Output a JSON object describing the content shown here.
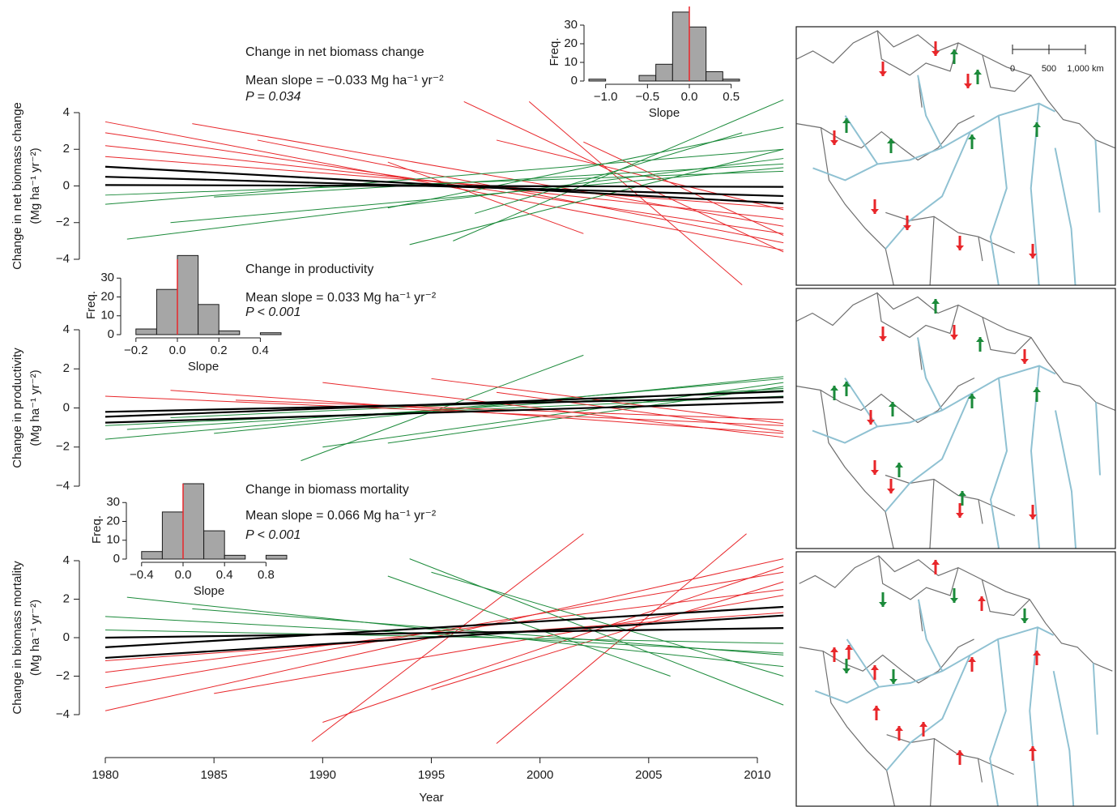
{
  "chart_data": [
    {
      "type": "line",
      "title": "Change in net biomass change",
      "annotation": "Mean slope = −0.033 Mg ha⁻¹ yr⁻²",
      "p_text": "P = 0.034",
      "ylabel": [
        "Change in net biomass change",
        "(Mg ha⁻¹ yr⁻²)"
      ],
      "xlim": [
        1980,
        2010
      ],
      "ylim": [
        -4,
        4
      ],
      "yticks": [
        {
          "value": -4,
          "label": "−4"
        },
        {
          "value": -2,
          "label": "−2"
        },
        0,
        2,
        4
      ],
      "series": [
        {
          "color": "#e8262a",
          "x": [
            1980,
            2011.2
          ],
          "values": [
            3.5,
            -3.5
          ]
        },
        {
          "color": "#e8262a",
          "x": [
            1980,
            2011.2
          ],
          "values": [
            2.9,
            -2.6
          ]
        },
        {
          "color": "#e8262a",
          "x": [
            1980,
            2011.2
          ],
          "values": [
            2.2,
            -1.8
          ]
        },
        {
          "color": "#e8262a",
          "x": [
            1980,
            2011.2
          ],
          "values": [
            1.6,
            -1.2
          ]
        },
        {
          "color": "#e8262a",
          "x": [
            1984,
            2011.2
          ],
          "values": [
            3.4,
            -2.2
          ]
        },
        {
          "color": "#e8262a",
          "x": [
            1987,
            2011.2
          ],
          "values": [
            2.5,
            -3.1
          ]
        },
        {
          "color": "#e8262a",
          "x": [
            1996.5,
            2011.2
          ],
          "values": [
            4.6,
            -3.6
          ]
        },
        {
          "color": "#e8262a",
          "x": [
            1999.5,
            2009.3
          ],
          "values": [
            4.6,
            -5.4
          ]
        },
        {
          "color": "#e8262a",
          "x": [
            1993,
            2002
          ],
          "values": [
            1.3,
            -2.6
          ]
        },
        {
          "color": "#e8262a",
          "x": [
            1998,
            2011.2
          ],
          "values": [
            2.5,
            -1.3
          ]
        },
        {
          "color": "#e8262a",
          "x": [
            2002,
            2011.2
          ],
          "values": [
            2.4,
            -2.7
          ]
        },
        {
          "color": "#1b8a3a",
          "x": [
            1981,
            2011.2
          ],
          "values": [
            -2.9,
            1.5
          ]
        },
        {
          "color": "#1b8a3a",
          "x": [
            1980,
            2011.2
          ],
          "values": [
            -1.0,
            2.0
          ]
        },
        {
          "color": "#1b8a3a",
          "x": [
            1980,
            2011.2
          ],
          "values": [
            -0.5,
            0.8
          ]
        },
        {
          "color": "#1b8a3a",
          "x": [
            1983,
            2011.2
          ],
          "values": [
            -2.0,
            1.0
          ]
        },
        {
          "color": "#1b8a3a",
          "x": [
            1996,
            2011.2
          ],
          "values": [
            -3.0,
            4.7
          ]
        },
        {
          "color": "#1b8a3a",
          "x": [
            1993,
            2011.2
          ],
          "values": [
            -1.2,
            3.2
          ]
        },
        {
          "color": "#1b8a3a",
          "x": [
            1985,
            2011.2
          ],
          "values": [
            -0.6,
            1.2
          ]
        },
        {
          "color": "#1b8a3a",
          "x": [
            1997,
            2009.3
          ],
          "values": [
            -1.5,
            2.9
          ]
        },
        {
          "color": "#1b8a3a",
          "x": [
            1994,
            2011.2
          ],
          "values": [
            -3.2,
            2.0
          ]
        },
        {
          "color": "#000000",
          "x": [
            1980,
            2011.2
          ],
          "values": [
            1.05,
            -0.95
          ]
        },
        {
          "color": "#000000",
          "x": [
            1980,
            2011.2
          ],
          "values": [
            0.5,
            -0.55
          ]
        },
        {
          "color": "#000000",
          "x": [
            1980,
            2011.2
          ],
          "values": [
            0.05,
            -0.05
          ]
        }
      ]
    },
    {
      "type": "histogram",
      "xlabel": "Slope",
      "ylabel": "Freq.",
      "color": "#a6a6a6",
      "ref_line": 0,
      "ref_color": "#e8262a",
      "bins": [
        -1.2,
        -1.0,
        -0.8,
        -0.6,
        -0.4,
        -0.2,
        0.0,
        0.2,
        0.4,
        0.6
      ],
      "counts": [
        1,
        0,
        0,
        3,
        9,
        37,
        29,
        5,
        1
      ],
      "xlim": [
        -1.2,
        0.6
      ],
      "ylim": [
        0,
        40
      ],
      "xticks": [
        {
          "value": -1.0,
          "label": "−1.0"
        },
        {
          "value": -0.5,
          "label": "−0.5"
        },
        {
          "value": 0,
          "label": "0.0"
        },
        0.5
      ],
      "yticks": [
        0,
        10,
        20,
        30
      ]
    },
    {
      "type": "line",
      "title": "Change in productivity",
      "annotation": "Mean slope = 0.033 Mg ha⁻¹ yr⁻²",
      "p_text": "P < 0.001",
      "ylabel": [
        "Change in productivity",
        "(Mg ha⁻¹ yr⁻²)"
      ],
      "xlim": [
        1980,
        2010
      ],
      "ylim": [
        -4,
        4
      ],
      "yticks": [
        {
          "value": -4,
          "label": "−4"
        },
        {
          "value": -2,
          "label": "−2"
        },
        0,
        2,
        4
      ],
      "series": [
        {
          "color": "#1b8a3a",
          "x": [
            1980,
            2011.2
          ],
          "values": [
            -1.6,
            1.5
          ]
        },
        {
          "color": "#1b8a3a",
          "x": [
            1981,
            2011.2
          ],
          "values": [
            -1.1,
            1.0
          ]
        },
        {
          "color": "#1b8a3a",
          "x": [
            1980,
            2011.2
          ],
          "values": [
            -0.9,
            0.6
          ]
        },
        {
          "color": "#1b8a3a",
          "x": [
            1989,
            2002
          ],
          "values": [
            -2.7,
            2.7
          ]
        },
        {
          "color": "#1b8a3a",
          "x": [
            1990,
            2011.2
          ],
          "values": [
            -2.0,
            1.3
          ]
        },
        {
          "color": "#1b8a3a",
          "x": [
            1985,
            2011.2
          ],
          "values": [
            -1.3,
            1.6
          ]
        },
        {
          "color": "#1b8a3a",
          "x": [
            1993,
            2011.2
          ],
          "values": [
            -1.8,
            1.1
          ]
        },
        {
          "color": "#1b8a3a",
          "x": [
            1983,
            2011.2
          ],
          "values": [
            -0.5,
            0.9
          ]
        },
        {
          "color": "#e8262a",
          "x": [
            1980,
            2011.2
          ],
          "values": [
            0.6,
            -0.9
          ]
        },
        {
          "color": "#e8262a",
          "x": [
            1983,
            2011.2
          ],
          "values": [
            0.9,
            -1.3
          ]
        },
        {
          "color": "#e8262a",
          "x": [
            1990,
            2011.2
          ],
          "values": [
            1.3,
            -1.5
          ]
        },
        {
          "color": "#e8262a",
          "x": [
            1995,
            2011.2
          ],
          "values": [
            1.5,
            -0.8
          ]
        },
        {
          "color": "#e8262a",
          "x": [
            1986,
            2011.2
          ],
          "values": [
            0.4,
            -0.6
          ]
        },
        {
          "color": "#e8262a",
          "x": [
            1998,
            2011.2
          ],
          "values": [
            0.8,
            -1.2
          ]
        },
        {
          "color": "#000000",
          "x": [
            1980,
            2011.2
          ],
          "values": [
            -0.2,
            0.55
          ]
        },
        {
          "color": "#000000",
          "x": [
            1980,
            2011.2
          ],
          "values": [
            -0.45,
            0.85
          ]
        },
        {
          "color": "#000000",
          "x": [
            1980,
            2011.2
          ],
          "values": [
            -0.75,
            0.3
          ]
        }
      ]
    },
    {
      "type": "histogram",
      "xlabel": "Slope",
      "ylabel": "Freq.",
      "color": "#a6a6a6",
      "ref_line": 0,
      "ref_color": "#e8262a",
      "bins": [
        -0.2,
        -0.1,
        0.0,
        0.1,
        0.2,
        0.3,
        0.4,
        0.5
      ],
      "counts": [
        3,
        24,
        42,
        16,
        2,
        0,
        1
      ],
      "xlim": [
        -0.25,
        0.5
      ],
      "ylim": [
        0,
        40
      ],
      "xticks": [
        {
          "value": -0.2,
          "label": "−0.2"
        },
        {
          "value": 0,
          "label": "0.0"
        },
        0.2,
        0.4
      ],
      "yticks": [
        0,
        10,
        20,
        30
      ]
    },
    {
      "type": "line",
      "title": "Change in biomass mortality",
      "annotation": "Mean slope = 0.066 Mg ha⁻¹ yr⁻²",
      "p_text": "P < 0.001",
      "ylabel": [
        "Change in biomass mortality",
        "(Mg ha⁻¹ yr⁻²)"
      ],
      "xlim": [
        1980,
        2010
      ],
      "ylim": [
        -4,
        4
      ],
      "xlabel": "Year",
      "xticks": [
        1980,
        1985,
        1990,
        1995,
        2000,
        2005,
        2010
      ],
      "yticks": [
        {
          "value": -4,
          "label": "−4"
        },
        {
          "value": -2,
          "label": "−2"
        },
        0,
        2,
        4
      ],
      "series": [
        {
          "color": "#e8262a",
          "x": [
            1980,
            2011.2
          ],
          "values": [
            -3.8,
            4.1
          ]
        },
        {
          "color": "#e8262a",
          "x": [
            1980,
            2011.2
          ],
          "values": [
            -2.6,
            3.4
          ]
        },
        {
          "color": "#e8262a",
          "x": [
            1980,
            2011.2
          ],
          "values": [
            -1.8,
            2.5
          ]
        },
        {
          "color": "#e8262a",
          "x": [
            1980,
            2011.2
          ],
          "values": [
            -1.2,
            1.3
          ]
        },
        {
          "color": "#e8262a",
          "x": [
            1989.5,
            2002
          ],
          "values": [
            -5.4,
            5.4
          ]
        },
        {
          "color": "#e8262a",
          "x": [
            1998,
            2009.5
          ],
          "values": [
            -5.5,
            5.4
          ]
        },
        {
          "color": "#e8262a",
          "x": [
            1990,
            2011.2
          ],
          "values": [
            -4.4,
            3.7
          ]
        },
        {
          "color": "#e8262a",
          "x": [
            1985,
            2011.2
          ],
          "values": [
            -2.9,
            2.2
          ]
        },
        {
          "color": "#e8262a",
          "x": [
            1995,
            2011.2
          ],
          "values": [
            -2.7,
            2.9
          ]
        },
        {
          "color": "#1b8a3a",
          "x": [
            1981,
            2011.2
          ],
          "values": [
            2.1,
            -1.5
          ]
        },
        {
          "color": "#1b8a3a",
          "x": [
            1980,
            2011.2
          ],
          "values": [
            1.1,
            -0.8
          ]
        },
        {
          "color": "#1b8a3a",
          "x": [
            1994,
            2011.2
          ],
          "values": [
            4.1,
            -3.5
          ]
        },
        {
          "color": "#1b8a3a",
          "x": [
            1995,
            2011.2
          ],
          "values": [
            3.4,
            -2.0
          ]
        },
        {
          "color": "#1b8a3a",
          "x": [
            1984,
            2011.2
          ],
          "values": [
            1.5,
            -0.9
          ]
        },
        {
          "color": "#1b8a3a",
          "x": [
            1980,
            2011.2
          ],
          "values": [
            0.4,
            -0.3
          ]
        },
        {
          "color": "#1b8a3a",
          "x": [
            1993,
            2006
          ],
          "values": [
            3.2,
            -2.0
          ]
        },
        {
          "color": "#000000",
          "x": [
            1980,
            2011.2
          ],
          "values": [
            -0.5,
            1.6
          ]
        },
        {
          "color": "#000000",
          "x": [
            1980,
            2011.2
          ],
          "values": [
            -1.05,
            1.15
          ]
        },
        {
          "color": "#000000",
          "x": [
            1980,
            2011.2
          ],
          "values": [
            0.0,
            0.5
          ]
        }
      ]
    },
    {
      "type": "histogram",
      "xlabel": "Slope",
      "ylabel": "Freq.",
      "color": "#a6a6a6",
      "ref_line": 0,
      "ref_color": "#e8262a",
      "bins": [
        -0.4,
        -0.2,
        0.0,
        0.2,
        0.4,
        0.6,
        0.8,
        1.0
      ],
      "counts": [
        4,
        25,
        40,
        15,
        2,
        0,
        2
      ],
      "xlim": [
        -0.5,
        1.0
      ],
      "ylim": [
        0,
        40
      ],
      "xticks": [
        {
          "value": -0.4,
          "label": "−0.4"
        },
        {
          "value": 0,
          "label": "0.0"
        },
        0.4,
        0.8
      ],
      "yticks": [
        0,
        10,
        20,
        30
      ]
    }
  ],
  "map_scale": [
    "0",
    "500",
    "1,000 km"
  ]
}
